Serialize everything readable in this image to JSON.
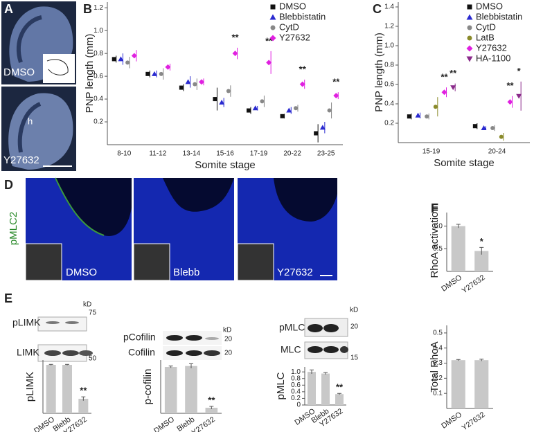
{
  "figure": {
    "panel_labels": [
      "A",
      "B",
      "C",
      "D",
      "E",
      "F"
    ],
    "panel_a": {
      "image_labels": [
        "DMSO",
        "Y27632"
      ],
      "region_label": "h"
    },
    "panel_d": {
      "stain": "pMLC2",
      "image_labels": [
        "DMSO",
        "Blebb",
        "Y27632"
      ]
    },
    "blots": [
      {
        "bands": [
          "pLIMK",
          "LIMK"
        ],
        "unit": "kD",
        "markers": [
          75,
          50
        ]
      },
      {
        "bands": [
          "pCofilin",
          "Cofilin"
        ],
        "unit": "kD",
        "markers": [
          20,
          20
        ]
      },
      {
        "bands": [
          "pMLC",
          "MLC"
        ],
        "unit": "kD",
        "markers": [
          20,
          15
        ]
      }
    ]
  },
  "chart_data": [
    {
      "type": "dot",
      "x_label": "Somite stage",
      "y_label": "PNP length (mm)",
      "categories": [
        "8-10",
        "11-12",
        "13-14",
        "15-16",
        "17-19",
        "20-22",
        "23-25"
      ],
      "series": [
        {
          "name": "DMSO",
          "color": "#111111",
          "marker": "square",
          "values": [
            0.75,
            0.62,
            0.5,
            0.4,
            0.3,
            0.25,
            0.1
          ],
          "errors": [
            0.03,
            0.03,
            0.03,
            0.1,
            0.03,
            0.02,
            0.08
          ],
          "significance": [
            null,
            null,
            null,
            null,
            null,
            null,
            null
          ]
        },
        {
          "name": "Blebbistatin",
          "color": "#2a2ad0",
          "marker": "triangle",
          "values": [
            0.75,
            0.62,
            0.55,
            0.37,
            0.32,
            0.3,
            0.15
          ],
          "errors": [
            0.05,
            0.03,
            0.05,
            0.04,
            0.02,
            0.03,
            0.05
          ],
          "significance": [
            null,
            null,
            null,
            null,
            null,
            null,
            null
          ]
        },
        {
          "name": "CytD",
          "color": "#888888",
          "marker": "circle",
          "values": [
            0.72,
            0.62,
            0.53,
            0.47,
            0.38,
            0.32,
            0.3
          ],
          "errors": [
            0.05,
            0.05,
            0.05,
            0.05,
            0.05,
            0.03,
            0.07
          ],
          "significance": [
            null,
            null,
            null,
            null,
            null,
            null,
            null
          ]
        },
        {
          "name": "Y27632",
          "color": "#e020e0",
          "marker": "diamond",
          "values": [
            0.78,
            0.68,
            0.55,
            0.8,
            0.72,
            0.53,
            0.43
          ],
          "errors": [
            0.05,
            0.03,
            0.03,
            0.05,
            0.1,
            0.04,
            0.03
          ],
          "significance": [
            null,
            null,
            null,
            "**",
            "**",
            "**",
            "**"
          ]
        }
      ],
      "ylim": [
        0,
        1.25
      ],
      "yticks": [
        0.2,
        0.4,
        0.6,
        0.8,
        {
          "value": 1,
          "label": "1.0"
        },
        1.2
      ],
      "legend": "top-right"
    },
    {
      "type": "dot",
      "x_label": "Somite stage",
      "y_label": "PNP length (mm)",
      "categories": [
        "15-19",
        "20-24"
      ],
      "series": [
        {
          "name": "DMSO",
          "color": "#111111",
          "marker": "square",
          "values": [
            0.27,
            0.17
          ],
          "errors": [
            0.03,
            0.03
          ],
          "significance": [
            null,
            null
          ]
        },
        {
          "name": "Blebbistatin",
          "color": "#2a2ad0",
          "marker": "triangle",
          "values": [
            0.28,
            0.15
          ],
          "errors": [
            0.03,
            0.02
          ],
          "significance": [
            null,
            null
          ]
        },
        {
          "name": "CytD",
          "color": "#888888",
          "marker": "circle",
          "values": [
            0.27,
            0.15
          ],
          "errors": [
            0.03,
            0.03
          ],
          "significance": [
            null,
            null
          ]
        },
        {
          "name": "LatB",
          "color": "#8a8a2a",
          "marker": "circle",
          "values": [
            0.37,
            0.06
          ],
          "errors": [
            0.1,
            0.04
          ],
          "significance": [
            null,
            null
          ]
        },
        {
          "name": "Y27632",
          "color": "#e020e0",
          "marker": "diamond",
          "values": [
            0.52,
            0.42
          ],
          "errors": [
            0.05,
            0.06
          ],
          "significance": [
            "**",
            "**"
          ]
        },
        {
          "name": "HA-1100",
          "color": "#8a2a8a",
          "marker": "invtriangle",
          "values": [
            0.57,
            0.48
          ],
          "errors": [
            0.04,
            0.15
          ],
          "significance": [
            "**",
            "*"
          ]
        }
      ],
      "ylim": [
        0,
        1.45
      ],
      "yticks": [
        0.2,
        0.4,
        0.6,
        0.8,
        {
          "value": 1,
          "label": "1.0"
        },
        1.2,
        1.4
      ],
      "legend": "top-right"
    },
    {
      "type": "bar",
      "y_label": "pLIMK",
      "categories": [
        "DMSO",
        "Blebb",
        "Y27632"
      ],
      "values": [
        1,
        1,
        0.3
      ],
      "errors": [
        0.01,
        0.01,
        0.04
      ],
      "significance": [
        null,
        null,
        "**"
      ],
      "color": "#c8c8c8",
      "ylim": [
        0,
        1.1
      ]
    },
    {
      "type": "bar",
      "y_label": "p-cofilin",
      "categories": [
        "DMSO",
        "Blebb",
        "Y27632"
      ],
      "values": [
        1,
        1.02,
        0.12
      ],
      "errors": [
        0.02,
        0.05,
        0.03
      ],
      "significance": [
        null,
        null,
        "**"
      ],
      "color": "#c8c8c8",
      "ylim": [
        0,
        1.15
      ]
    },
    {
      "type": "bar",
      "y_label": "pMLC",
      "categories": [
        "DMSO",
        "Blebb",
        "Y27632"
      ],
      "values": [
        1,
        0.95,
        0.33
      ],
      "errors": [
        0.06,
        0.03,
        0.02
      ],
      "significance": [
        null,
        null,
        "**"
      ],
      "color": "#c8c8c8",
      "ylim": [
        0,
        1.15
      ],
      "yticks": [
        0,
        0.2,
        0.4,
        0.6,
        0.8,
        {
          "value": 1,
          "label": "1.0"
        }
      ]
    },
    {
      "type": "bar",
      "y_label": "RhoA activation",
      "categories": [
        "DMSO",
        "Y27632"
      ],
      "values": [
        1,
        0.45
      ],
      "errors": [
        0.04,
        0.08
      ],
      "significance": [
        null,
        "*"
      ],
      "color": "#c8c8c8",
      "ylim": [
        0,
        1.3
      ],
      "yticks": [
        0.5,
        {
          "value": 1,
          "label": "1.0"
        }
      ]
    },
    {
      "type": "bar",
      "y_label": "Total RhoA",
      "categories": [
        "DMSO",
        "Y27632"
      ],
      "values": [
        0.32,
        0.32
      ],
      "errors": [
        0.004,
        0.006
      ],
      "significance": [
        null,
        null
      ],
      "color": "#c8c8c8",
      "ylim": [
        0,
        0.55
      ],
      "yticks": [
        0.1,
        0.2,
        0.3,
        0.4,
        0.5
      ]
    }
  ]
}
